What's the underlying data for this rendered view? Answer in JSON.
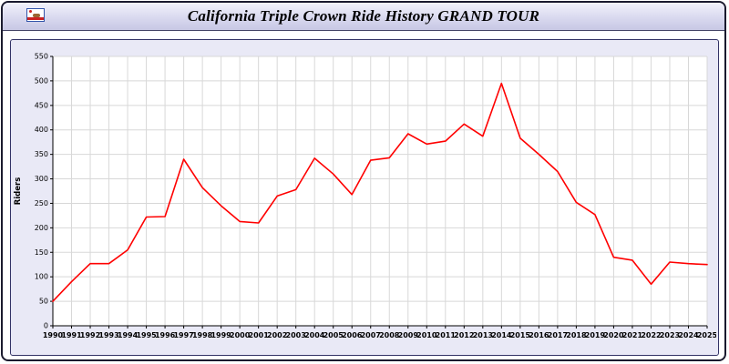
{
  "header": {
    "title": "California Triple Crown Ride History GRAND TOUR"
  },
  "icons": {
    "flag": "california-flag-icon"
  },
  "chart_data": {
    "type": "line",
    "title": "California Triple Crown Ride History GRAND TOUR",
    "xlabel": "",
    "ylabel": "Riders",
    "ylim": [
      0,
      550
    ],
    "ytick_step": 50,
    "grid": true,
    "legend": "none",
    "line_color": "#ff0000",
    "plot_bg": "#ffffff",
    "panel_bg": "#e9e9f6",
    "grid_color": "#d8d8d8",
    "x": [
      1990,
      1991,
      1992,
      1993,
      1994,
      1995,
      1996,
      1997,
      1998,
      1999,
      2000,
      2001,
      2002,
      2003,
      2004,
      2005,
      2006,
      2007,
      2008,
      2009,
      2010,
      2011,
      2012,
      2013,
      2014,
      2015,
      2016,
      2017,
      2018,
      2019,
      2020,
      2021,
      2022,
      2023,
      2024,
      2025
    ],
    "series": [
      {
        "name": "Riders",
        "values": [
          50,
          90,
          127,
          127,
          155,
          222,
          223,
          340,
          282,
          245,
          213,
          210,
          265,
          278,
          342,
          310,
          268,
          338,
          343,
          392,
          371,
          377,
          412,
          387,
          495,
          383,
          350,
          315,
          252,
          227,
          140,
          134,
          85,
          130,
          127,
          125
        ]
      }
    ]
  }
}
